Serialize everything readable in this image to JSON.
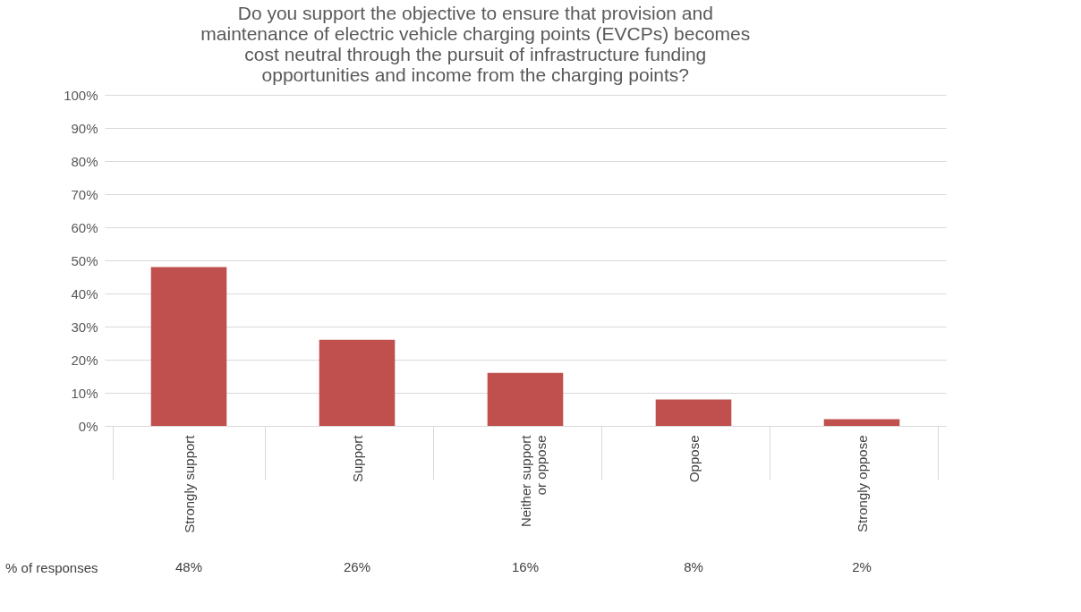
{
  "chart_data": {
    "type": "bar",
    "title": "Do you support the objective to ensure that provision and maintenance of electric vehicle charging points (EVCPs) becomes cost neutral through the pursuit of infrastructure funding opportunities and income from the charging points?",
    "categories": [
      "Strongly support",
      "Support",
      "Neither support or oppose",
      "Oppose",
      "Strongly oppose"
    ],
    "series": [
      {
        "name": "% of responses",
        "color": "#c0504d",
        "values": [
          48,
          26,
          16,
          8,
          2
        ],
        "value_labels": [
          "48%",
          "26%",
          "16%",
          "8%",
          "2%"
        ]
      }
    ],
    "ylim": [
      0,
      100
    ],
    "yticks": [
      {
        "value": 0,
        "label": "0%"
      },
      {
        "value": 10,
        "label": "10%"
      },
      {
        "value": 20,
        "label": "20%"
      },
      {
        "value": 30,
        "label": "30%"
      },
      {
        "value": 40,
        "label": "40%"
      },
      {
        "value": 50,
        "label": "50%"
      },
      {
        "value": 60,
        "label": "60%"
      },
      {
        "value": 70,
        "label": "70%"
      },
      {
        "value": 80,
        "label": "80%"
      },
      {
        "value": 90,
        "label": "90%"
      },
      {
        "value": 100,
        "label": "100%"
      }
    ],
    "grid": "y"
  }
}
